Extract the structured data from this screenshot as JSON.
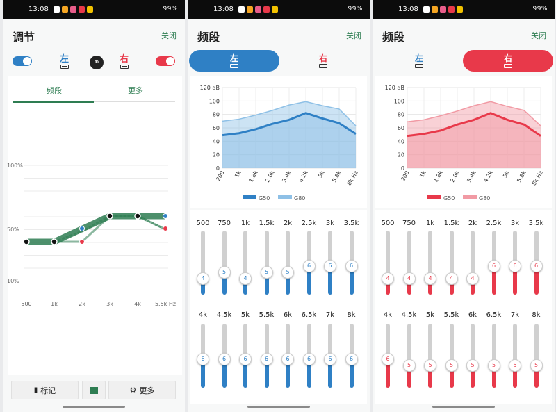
{
  "status": {
    "time": "13:08",
    "battery_text": "99%"
  },
  "panel1": {
    "title": "调节",
    "close": "关闭",
    "left_label": "左",
    "right_label": "右",
    "tabs": [
      "频段",
      "更多"
    ],
    "y_labels": [
      "100%",
      "50%",
      "10%"
    ],
    "x_labels": [
      "500",
      "1k",
      "2k",
      "3k",
      "4k",
      "5.5k Hz"
    ],
    "buttons": {
      "mark": "标记",
      "more": "更多"
    },
    "colors": {
      "left": "#2f80c5",
      "right": "#e8394a",
      "accent": "#2e7d52"
    }
  },
  "panel2": {
    "title": "频段",
    "close": "关闭",
    "seg_left": "左",
    "seg_right": "右",
    "chart_data": {
      "type": "area",
      "x": [
        "200",
        "1k",
        "1.8k",
        "2.6k",
        "3.4k",
        "4.2k",
        "5k",
        "5.8k",
        "8k Hz"
      ],
      "y_ticks": [
        "120 dB",
        "100",
        "80",
        "60",
        "40",
        "20",
        "0"
      ],
      "ylim": [
        0,
        120
      ],
      "series": [
        {
          "name": "G50",
          "values": [
            49,
            52,
            58,
            66,
            72,
            82,
            74,
            67,
            51
          ]
        },
        {
          "name": "G80",
          "values": [
            70,
            73,
            79,
            86,
            94,
            99,
            93,
            88,
            63
          ]
        }
      ]
    },
    "bands_row1": [
      "500",
      "750",
      "1k",
      "1.5k",
      "2k",
      "2.5k",
      "3k",
      "3.5k"
    ],
    "values_row1": [
      4,
      5,
      4,
      5,
      5,
      6,
      6,
      6
    ],
    "bands_row2": [
      "4k",
      "4.5k",
      "5k",
      "5.5k",
      "6k",
      "6.5k",
      "7k",
      "8k"
    ],
    "values_row2": [
      6,
      6,
      6,
      6,
      6,
      6,
      6,
      6
    ],
    "color": "#2f80c5"
  },
  "panel3": {
    "title": "频段",
    "close": "关闭",
    "seg_left": "左",
    "seg_right": "右",
    "chart_data": {
      "type": "area",
      "x": [
        "200",
        "1k",
        "1.8k",
        "2.6k",
        "3.4k",
        "4.2k",
        "5k",
        "5.8k",
        "8k Hz"
      ],
      "y_ticks": [
        "120 dB",
        "100",
        "80",
        "60",
        "40",
        "20",
        "0"
      ],
      "ylim": [
        0,
        120
      ],
      "series": [
        {
          "name": "G50",
          "values": [
            48,
            51,
            56,
            65,
            72,
            82,
            72,
            65,
            48
          ]
        },
        {
          "name": "G80",
          "values": [
            69,
            72,
            78,
            85,
            93,
            99,
            92,
            86,
            63
          ]
        }
      ]
    },
    "bands_row1": [
      "500",
      "750",
      "1k",
      "1.5k",
      "2k",
      "2.5k",
      "3k",
      "3.5k"
    ],
    "values_row1": [
      4,
      4,
      4,
      4,
      4,
      6,
      6,
      6
    ],
    "bands_row2": [
      "4k",
      "4.5k",
      "5k",
      "5.5k",
      "6k",
      "6.5k",
      "7k",
      "8k"
    ],
    "values_row2": [
      6,
      5,
      5,
      5,
      5,
      5,
      5,
      5
    ],
    "color": "#e8394a"
  }
}
